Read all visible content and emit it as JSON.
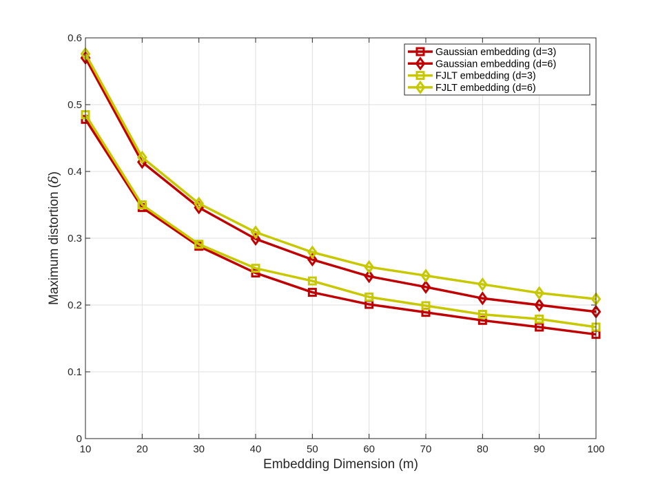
{
  "chart_data": {
    "type": "line",
    "title": "",
    "xlabel": "Embedding Dimension (m)",
    "ylabel_prefix": "Maximum distortion (",
    "ylabel_symbol": "δ",
    "ylabel_suffix": ")",
    "x": [
      10,
      20,
      30,
      40,
      50,
      60,
      70,
      80,
      90,
      100
    ],
    "xlim": [
      10,
      100
    ],
    "ylim": [
      0,
      0.6
    ],
    "xticks": [
      10,
      20,
      30,
      40,
      50,
      60,
      70,
      80,
      90,
      100
    ],
    "yticks": [
      0,
      0.1,
      0.2,
      0.3,
      0.4,
      0.5,
      0.6
    ],
    "ytick_labels": [
      "0",
      "0.1",
      "0.2",
      "0.3",
      "0.4",
      "0.5",
      "0.6"
    ],
    "grid": true,
    "legend_position": "top-right",
    "series": [
      {
        "name": "Gaussian embedding (d=3)",
        "color": "#c00000",
        "marker": "square",
        "values": [
          0.478,
          0.346,
          0.288,
          0.248,
          0.219,
          0.201,
          0.189,
          0.177,
          0.167,
          0.156
        ]
      },
      {
        "name": "Gaussian embedding (d=6)",
        "color": "#c00000",
        "marker": "diamond",
        "values": [
          0.57,
          0.414,
          0.346,
          0.299,
          0.268,
          0.243,
          0.227,
          0.21,
          0.2,
          0.19
        ]
      },
      {
        "name": "FJLT embedding (d=3)",
        "color": "#c8c800",
        "marker": "square",
        "values": [
          0.485,
          0.35,
          0.291,
          0.255,
          0.236,
          0.212,
          0.199,
          0.186,
          0.179,
          0.167
        ]
      },
      {
        "name": "FJLT embedding (d=6)",
        "color": "#c8c800",
        "marker": "diamond",
        "values": [
          0.576,
          0.421,
          0.352,
          0.309,
          0.279,
          0.257,
          0.244,
          0.231,
          0.218,
          0.209
        ]
      }
    ]
  }
}
